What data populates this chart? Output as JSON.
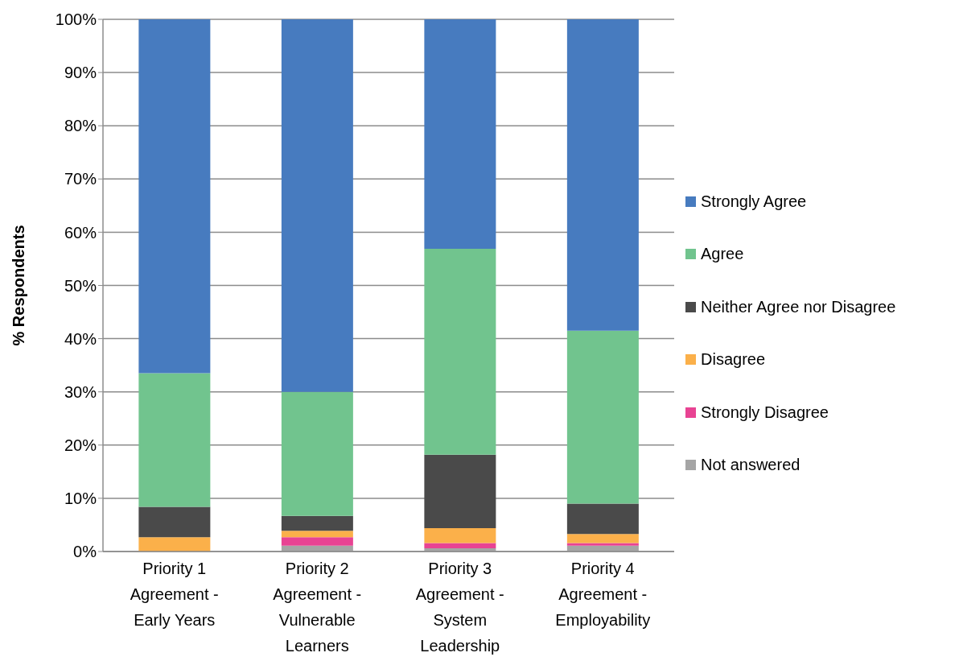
{
  "chart_data": {
    "type": "bar",
    "stacked": true,
    "ylabel": "% Respondents",
    "categories": [
      "Priority 1 Agreement - Early Years",
      "Priority 2 Agreement - Vulnerable Learners",
      "Priority 3 Agreement - System Leadership",
      "Priority 4 Agreement - Employability"
    ],
    "series": [
      {
        "name": "Not answered",
        "color": "#a5a5a5",
        "values": [
          0,
          1.1,
          0.6,
          1.1
        ]
      },
      {
        "name": "Strongly Disagree",
        "color": "#e84393",
        "values": [
          0,
          1.6,
          1.0,
          0.5
        ]
      },
      {
        "name": "Disagree",
        "color": "#fbb04a",
        "values": [
          2.7,
          1.2,
          2.8,
          1.7
        ]
      },
      {
        "name": "Neither Agree nor Disagree",
        "color": "#4a4a4a",
        "values": [
          5.7,
          2.8,
          13.8,
          5.7
        ]
      },
      {
        "name": "Agree",
        "color": "#71c48e",
        "values": [
          25.1,
          23.3,
          38.7,
          32.5
        ]
      },
      {
        "name": "Strongly Agree",
        "color": "#477bbf",
        "values": [
          66.5,
          70.0,
          43.1,
          58.5
        ]
      }
    ],
    "ylim": [
      0,
      100
    ],
    "yticks": [
      {
        "value": 0,
        "label": "0%"
      },
      {
        "value": 10,
        "label": "10%"
      },
      {
        "value": 20,
        "label": "20%"
      },
      {
        "value": 30,
        "label": "30%"
      },
      {
        "value": 40,
        "label": "40%"
      },
      {
        "value": 50,
        "label": "50%"
      },
      {
        "value": 60,
        "label": "60%"
      },
      {
        "value": 70,
        "label": "70%"
      },
      {
        "value": 80,
        "label": "80%"
      },
      {
        "value": 90,
        "label": "90%"
      },
      {
        "value": 100,
        "label": "100%"
      }
    ],
    "grid": "y",
    "legend": "right"
  }
}
